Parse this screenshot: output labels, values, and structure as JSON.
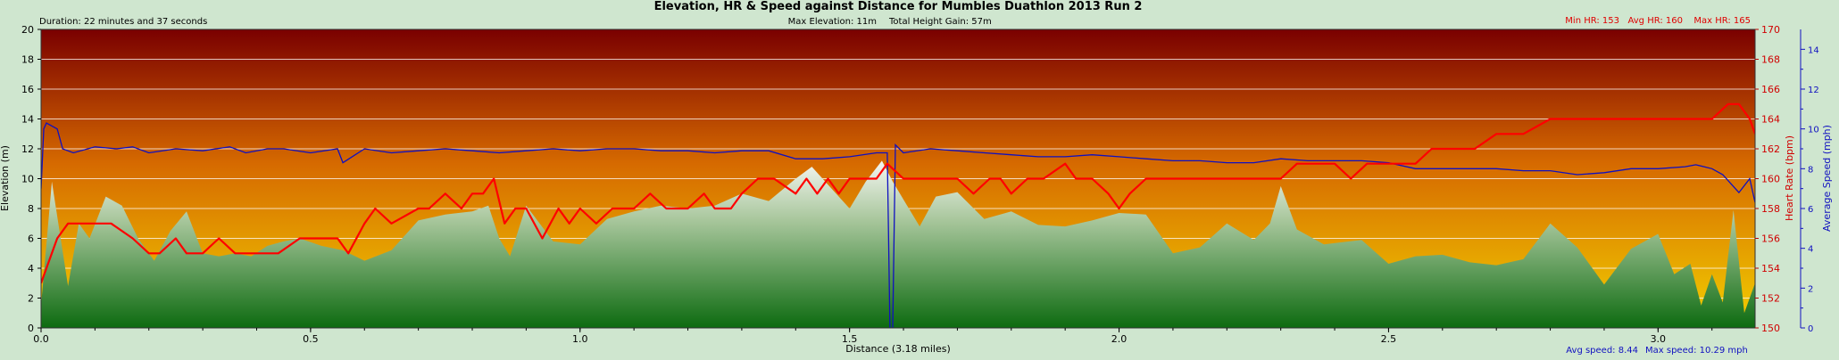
{
  "chart_data": {
    "type": "area",
    "title": "Elevation, HR & Speed against Distance for Mumbles Duathlon 2013 Run 2",
    "header": {
      "duration": "Duration: 22 minutes and 37 seconds",
      "max_elevation": "Max Elevation: 11m",
      "total_height_gain": "Total Height Gain: 57m",
      "min_hr": "Min HR: 153",
      "avg_hr": "Avg HR: 160",
      "max_hr": "Max HR: 165",
      "avg_speed": "Avg speed: 8.44",
      "max_speed": "Max speed: 10.29 mph"
    },
    "xlabel": "Distance (3.18 miles)",
    "ylabel_left": "Elevation (m)",
    "ylabel_right_hr": "Heart Rate (bpm)",
    "ylabel_right_speed": "Average Speed (mph)",
    "xlim": [
      0,
      3.18
    ],
    "ylim_elevation": [
      0,
      20
    ],
    "ylim_hr": [
      150,
      170
    ],
    "ylim_speed": [
      0,
      15
    ],
    "x_ticks": [
      "0.0",
      "0.5",
      "1.0",
      "1.5",
      "2.0",
      "2.5",
      "3.0"
    ],
    "elevation_ticks": [
      "0",
      "2",
      "4",
      "6",
      "8",
      "10",
      "12",
      "14",
      "16",
      "18",
      "20"
    ],
    "hr_ticks": [
      "150",
      "152",
      "154",
      "156",
      "158",
      "160",
      "162",
      "164",
      "166",
      "168",
      "170"
    ],
    "speed_ticks": [
      "0",
      "2",
      "4",
      "6",
      "8",
      "10",
      "12",
      "14"
    ],
    "grid": true,
    "colors": {
      "elevation_fill_top": "#f0f4f0",
      "elevation_fill_bottom": "#0d6b10",
      "hr_line": "#ff0000",
      "speed_line": "#1010c0",
      "background_top": "#7a0000",
      "background_bottom": "#f2d000",
      "frame_bg": "#cfe6cf"
    },
    "series": [
      {
        "name": "Elevation",
        "x": [
          0.0,
          0.02,
          0.05,
          0.07,
          0.09,
          0.12,
          0.15,
          0.18,
          0.21,
          0.24,
          0.27,
          0.3,
          0.33,
          0.36,
          0.39,
          0.42,
          0.45,
          0.48,
          0.52,
          0.56,
          0.6,
          0.65,
          0.7,
          0.75,
          0.8,
          0.83,
          0.85,
          0.87,
          0.9,
          0.95,
          1.0,
          1.05,
          1.1,
          1.15,
          1.2,
          1.25,
          1.3,
          1.35,
          1.4,
          1.43,
          1.46,
          1.5,
          1.53,
          1.56,
          1.58,
          1.6,
          1.63,
          1.66,
          1.7,
          1.75,
          1.8,
          1.85,
          1.9,
          1.95,
          2.0,
          2.05,
          2.1,
          2.15,
          2.2,
          2.25,
          2.28,
          2.3,
          2.33,
          2.38,
          2.45,
          2.5,
          2.55,
          2.6,
          2.65,
          2.7,
          2.75,
          2.8,
          2.85,
          2.9,
          2.95,
          3.0,
          3.03,
          3.06,
          3.08,
          3.1,
          3.12,
          3.14,
          3.16,
          3.18
        ],
        "values": [
          1.5,
          9.8,
          2.8,
          7.0,
          6.0,
          8.8,
          8.2,
          6.0,
          4.5,
          6.5,
          7.8,
          5.0,
          4.8,
          5.0,
          4.8,
          5.5,
          5.8,
          6.0,
          5.5,
          5.2,
          4.5,
          5.2,
          7.2,
          7.6,
          7.8,
          8.2,
          6.0,
          4.8,
          8.2,
          5.8,
          5.6,
          7.3,
          7.8,
          8.2,
          8.0,
          8.2,
          9.0,
          8.5,
          10.0,
          10.8,
          9.6,
          8.0,
          9.8,
          11.2,
          9.8,
          8.6,
          6.8,
          8.8,
          9.1,
          7.3,
          7.8,
          6.9,
          6.8,
          7.2,
          7.7,
          7.6,
          5.0,
          5.4,
          7.0,
          5.9,
          7.0,
          9.5,
          6.6,
          5.6,
          5.9,
          4.3,
          4.8,
          4.9,
          4.4,
          4.2,
          4.6,
          7.0,
          5.4,
          2.9,
          5.3,
          6.3,
          3.6,
          4.3,
          1.5,
          3.6,
          1.7,
          7.9,
          1.0,
          3.0
        ]
      },
      {
        "name": "Heart Rate",
        "x": [
          0.0,
          0.01,
          0.03,
          0.05,
          0.07,
          0.1,
          0.13,
          0.17,
          0.2,
          0.22,
          0.25,
          0.27,
          0.3,
          0.33,
          0.36,
          0.4,
          0.44,
          0.48,
          0.52,
          0.55,
          0.57,
          0.6,
          0.62,
          0.65,
          0.7,
          0.72,
          0.75,
          0.78,
          0.8,
          0.82,
          0.84,
          0.86,
          0.88,
          0.9,
          0.93,
          0.96,
          0.98,
          1.0,
          1.03,
          1.06,
          1.1,
          1.13,
          1.16,
          1.2,
          1.23,
          1.25,
          1.28,
          1.3,
          1.33,
          1.36,
          1.4,
          1.42,
          1.44,
          1.46,
          1.48,
          1.5,
          1.53,
          1.55,
          1.57,
          1.6,
          1.65,
          1.7,
          1.73,
          1.76,
          1.78,
          1.8,
          1.83,
          1.86,
          1.9,
          1.92,
          1.95,
          1.98,
          2.0,
          2.02,
          2.05,
          2.08,
          2.12,
          2.15,
          2.18,
          2.22,
          2.26,
          2.3,
          2.33,
          2.36,
          2.38,
          2.4,
          2.43,
          2.46,
          2.5,
          2.55,
          2.58,
          2.6,
          2.63,
          2.66,
          2.7,
          2.75,
          2.8,
          2.85,
          2.9,
          2.95,
          3.0,
          3.05,
          3.1,
          3.13,
          3.15,
          3.17,
          3.18
        ],
        "values": [
          153,
          154,
          156,
          157,
          157,
          157,
          157,
          156,
          155,
          155,
          156,
          155,
          155,
          156,
          155,
          155,
          155,
          156,
          156,
          156,
          155,
          157,
          158,
          157,
          158,
          158,
          159,
          158,
          159,
          159,
          160,
          157,
          158,
          158,
          156,
          158,
          157,
          158,
          157,
          158,
          158,
          159,
          158,
          158,
          159,
          158,
          158,
          159,
          160,
          160,
          159,
          160,
          159,
          160,
          159,
          160,
          160,
          160,
          161,
          160,
          160,
          160,
          159,
          160,
          160,
          159,
          160,
          160,
          161,
          160,
          160,
          159,
          158,
          159,
          160,
          160,
          160,
          160,
          160,
          160,
          160,
          160,
          161,
          161,
          161,
          161,
          160,
          161,
          161,
          161,
          162,
          162,
          162,
          162,
          163,
          163,
          164,
          164,
          164,
          164,
          164,
          164,
          164,
          165,
          165,
          164,
          163
        ]
      },
      {
        "name": "Average Speed",
        "x": [
          0.0,
          0.005,
          0.01,
          0.03,
          0.04,
          0.06,
          0.1,
          0.14,
          0.17,
          0.2,
          0.25,
          0.3,
          0.35,
          0.38,
          0.42,
          0.45,
          0.5,
          0.55,
          0.56,
          0.6,
          0.65,
          0.7,
          0.75,
          0.8,
          0.85,
          0.9,
          0.95,
          1.0,
          1.05,
          1.1,
          1.15,
          1.2,
          1.25,
          1.3,
          1.35,
          1.4,
          1.45,
          1.5,
          1.55,
          1.57,
          1.575,
          1.58,
          1.585,
          1.6,
          1.65,
          1.7,
          1.75,
          1.8,
          1.85,
          1.9,
          1.95,
          2.0,
          2.05,
          2.1,
          2.15,
          2.2,
          2.25,
          2.3,
          2.35,
          2.4,
          2.45,
          2.5,
          2.55,
          2.6,
          2.65,
          2.7,
          2.75,
          2.8,
          2.85,
          2.9,
          2.95,
          3.0,
          3.05,
          3.07,
          3.1,
          3.12,
          3.13,
          3.15,
          3.17,
          3.18
        ],
        "values": [
          7.0,
          10.0,
          10.3,
          10.0,
          9.0,
          8.8,
          9.1,
          9.0,
          9.1,
          8.8,
          9.0,
          8.9,
          9.1,
          8.8,
          9.0,
          9.0,
          8.8,
          9.0,
          8.3,
          9.0,
          8.8,
          8.9,
          9.0,
          8.9,
          8.8,
          8.9,
          9.0,
          8.9,
          9.0,
          9.0,
          8.9,
          8.9,
          8.8,
          8.9,
          8.9,
          8.5,
          8.5,
          8.6,
          8.8,
          8.8,
          0.0,
          0.0,
          9.2,
          8.8,
          9.0,
          8.9,
          8.8,
          8.7,
          8.6,
          8.6,
          8.7,
          8.6,
          8.5,
          8.4,
          8.4,
          8.3,
          8.3,
          8.5,
          8.4,
          8.4,
          8.4,
          8.3,
          8.0,
          8.0,
          8.0,
          8.0,
          7.9,
          7.9,
          7.7,
          7.8,
          8.0,
          8.0,
          8.1,
          8.2,
          8.0,
          7.7,
          7.4,
          6.8,
          7.5,
          6.3
        ]
      }
    ]
  }
}
